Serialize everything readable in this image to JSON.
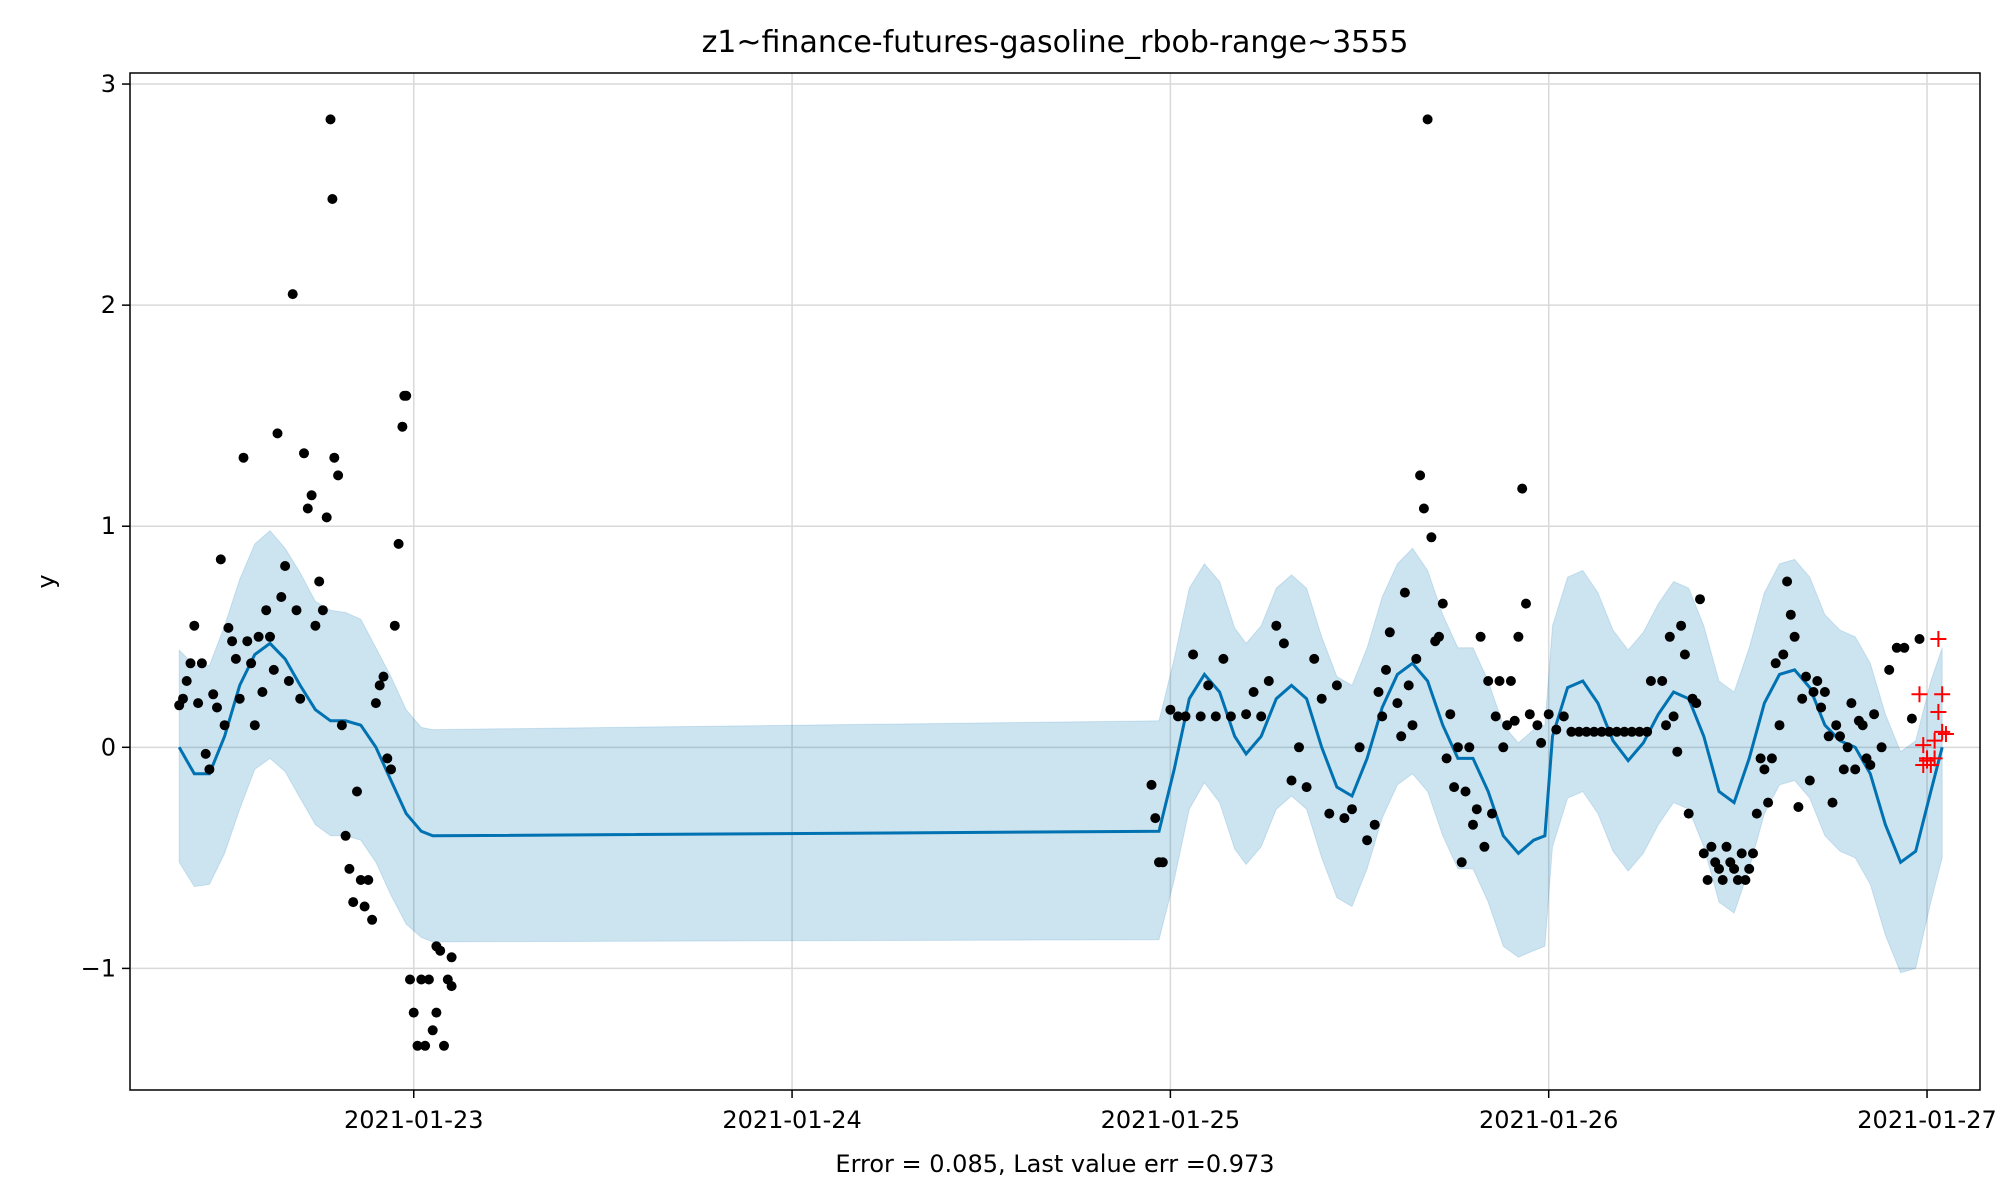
{
  "chart_data": {
    "type": "scatter",
    "title": "z1~finance-futures-gasoline_rbob-range~3555",
    "xlabel": "Error = 0.085, Last value err =0.973",
    "ylabel": "y",
    "x_unit": "days",
    "x_start_date": "2021-01-22",
    "xlim": [
      0.25,
      5.14
    ],
    "ylim": [
      -1.55,
      3.05
    ],
    "grid": true,
    "x_ticks": [
      {
        "x": 1.0,
        "label": "2021-01-23"
      },
      {
        "x": 2.0,
        "label": "2021-01-24"
      },
      {
        "x": 3.0,
        "label": "2021-01-25"
      },
      {
        "x": 4.0,
        "label": "2021-01-26"
      },
      {
        "x": 5.0,
        "label": "2021-01-27"
      }
    ],
    "y_ticks": [
      {
        "y": 3,
        "label": "3"
      },
      {
        "y": 2,
        "label": "2"
      },
      {
        "y": 1,
        "label": "1"
      },
      {
        "y": 0,
        "label": "0"
      },
      {
        "y": -1,
        "label": "−1"
      }
    ],
    "colors": {
      "forecast_line": "#0072B2",
      "interval_fill": "#0072B2",
      "observed": "#000000",
      "future": "#ff0000",
      "grid": "#d9d9d9"
    },
    "forecast": [
      [
        0.38,
        0.0
      ],
      [
        0.42,
        -0.12
      ],
      [
        0.46,
        -0.12
      ],
      [
        0.5,
        0.05
      ],
      [
        0.54,
        0.28
      ],
      [
        0.58,
        0.42
      ],
      [
        0.62,
        0.47
      ],
      [
        0.66,
        0.4
      ],
      [
        0.7,
        0.28
      ],
      [
        0.74,
        0.17
      ],
      [
        0.78,
        0.12
      ],
      [
        0.82,
        0.12
      ],
      [
        0.86,
        0.1
      ],
      [
        0.9,
        0.0
      ],
      [
        0.94,
        -0.15
      ],
      [
        0.98,
        -0.3
      ],
      [
        1.02,
        -0.38
      ],
      [
        1.05,
        -0.4
      ],
      [
        2.97,
        -0.38
      ],
      [
        3.01,
        -0.1
      ],
      [
        3.05,
        0.22
      ],
      [
        3.09,
        0.33
      ],
      [
        3.13,
        0.25
      ],
      [
        3.17,
        0.05
      ],
      [
        3.2,
        -0.03
      ],
      [
        3.24,
        0.05
      ],
      [
        3.28,
        0.22
      ],
      [
        3.32,
        0.28
      ],
      [
        3.36,
        0.22
      ],
      [
        3.4,
        0.0
      ],
      [
        3.44,
        -0.18
      ],
      [
        3.48,
        -0.22
      ],
      [
        3.52,
        -0.05
      ],
      [
        3.56,
        0.18
      ],
      [
        3.6,
        0.33
      ],
      [
        3.64,
        0.38
      ],
      [
        3.68,
        0.3
      ],
      [
        3.72,
        0.1
      ],
      [
        3.76,
        -0.05
      ],
      [
        3.8,
        -0.05
      ],
      [
        3.84,
        -0.2
      ],
      [
        3.88,
        -0.4
      ],
      [
        3.92,
        -0.48
      ],
      [
        3.96,
        -0.42
      ],
      [
        3.99,
        -0.4
      ],
      [
        4.01,
        0.05
      ],
      [
        4.05,
        0.27
      ],
      [
        4.09,
        0.3
      ],
      [
        4.13,
        0.2
      ],
      [
        4.17,
        0.03
      ],
      [
        4.21,
        -0.06
      ],
      [
        4.25,
        0.02
      ],
      [
        4.29,
        0.15
      ],
      [
        4.33,
        0.25
      ],
      [
        4.37,
        0.22
      ],
      [
        4.41,
        0.05
      ],
      [
        4.45,
        -0.2
      ],
      [
        4.49,
        -0.25
      ],
      [
        4.53,
        -0.05
      ],
      [
        4.57,
        0.2
      ],
      [
        4.61,
        0.33
      ],
      [
        4.65,
        0.35
      ],
      [
        4.69,
        0.27
      ],
      [
        4.73,
        0.1
      ],
      [
        4.77,
        0.03
      ],
      [
        4.81,
        0.0
      ],
      [
        4.85,
        -0.12
      ],
      [
        4.89,
        -0.35
      ],
      [
        4.93,
        -0.52
      ],
      [
        4.97,
        -0.47
      ],
      [
        5.01,
        -0.2
      ],
      [
        5.04,
        0.0
      ]
    ],
    "interval": [
      [
        0.38,
        -0.52,
        0.44
      ],
      [
        0.42,
        -0.63,
        0.37
      ],
      [
        0.46,
        -0.62,
        0.37
      ],
      [
        0.5,
        -0.48,
        0.55
      ],
      [
        0.54,
        -0.28,
        0.76
      ],
      [
        0.58,
        -0.1,
        0.92
      ],
      [
        0.62,
        -0.05,
        0.98
      ],
      [
        0.66,
        -0.11,
        0.9
      ],
      [
        0.7,
        -0.23,
        0.79
      ],
      [
        0.74,
        -0.35,
        0.66
      ],
      [
        0.78,
        -0.4,
        0.62
      ],
      [
        0.82,
        -0.4,
        0.61
      ],
      [
        0.86,
        -0.42,
        0.58
      ],
      [
        0.9,
        -0.52,
        0.45
      ],
      [
        0.94,
        -0.67,
        0.32
      ],
      [
        0.98,
        -0.8,
        0.17
      ],
      [
        1.02,
        -0.86,
        0.09
      ],
      [
        1.05,
        -0.88,
        0.08
      ],
      [
        2.97,
        -0.87,
        0.12
      ],
      [
        3.01,
        -0.6,
        0.4
      ],
      [
        3.05,
        -0.28,
        0.72
      ],
      [
        3.09,
        -0.16,
        0.83
      ],
      [
        3.13,
        -0.25,
        0.75
      ],
      [
        3.17,
        -0.46,
        0.54
      ],
      [
        3.2,
        -0.53,
        0.47
      ],
      [
        3.24,
        -0.45,
        0.55
      ],
      [
        3.28,
        -0.28,
        0.72
      ],
      [
        3.32,
        -0.22,
        0.78
      ],
      [
        3.36,
        -0.28,
        0.72
      ],
      [
        3.4,
        -0.5,
        0.5
      ],
      [
        3.44,
        -0.68,
        0.32
      ],
      [
        3.48,
        -0.72,
        0.28
      ],
      [
        3.52,
        -0.55,
        0.45
      ],
      [
        3.56,
        -0.32,
        0.68
      ],
      [
        3.6,
        -0.17,
        0.83
      ],
      [
        3.64,
        -0.12,
        0.9
      ],
      [
        3.68,
        -0.2,
        0.8
      ],
      [
        3.72,
        -0.4,
        0.6
      ],
      [
        3.76,
        -0.55,
        0.45
      ],
      [
        3.8,
        -0.55,
        0.45
      ],
      [
        3.84,
        -0.7,
        0.3
      ],
      [
        3.88,
        -0.9,
        0.1
      ],
      [
        3.92,
        -0.95,
        0.02
      ],
      [
        3.96,
        -0.92,
        0.08
      ],
      [
        3.99,
        -0.9,
        0.1
      ],
      [
        4.01,
        -0.45,
        0.55
      ],
      [
        4.05,
        -0.23,
        0.77
      ],
      [
        4.09,
        -0.2,
        0.8
      ],
      [
        4.13,
        -0.3,
        0.7
      ],
      [
        4.17,
        -0.47,
        0.53
      ],
      [
        4.21,
        -0.56,
        0.44
      ],
      [
        4.25,
        -0.48,
        0.52
      ],
      [
        4.29,
        -0.35,
        0.65
      ],
      [
        4.33,
        -0.25,
        0.75
      ],
      [
        4.37,
        -0.28,
        0.72
      ],
      [
        4.41,
        -0.45,
        0.55
      ],
      [
        4.45,
        -0.7,
        0.3
      ],
      [
        4.49,
        -0.75,
        0.25
      ],
      [
        4.53,
        -0.55,
        0.45
      ],
      [
        4.57,
        -0.3,
        0.7
      ],
      [
        4.61,
        -0.17,
        0.83
      ],
      [
        4.65,
        -0.15,
        0.85
      ],
      [
        4.69,
        -0.23,
        0.77
      ],
      [
        4.73,
        -0.4,
        0.6
      ],
      [
        4.77,
        -0.47,
        0.53
      ],
      [
        4.81,
        -0.5,
        0.5
      ],
      [
        4.85,
        -0.62,
        0.38
      ],
      [
        4.89,
        -0.85,
        0.15
      ],
      [
        4.93,
        -1.02,
        -0.02
      ],
      [
        4.97,
        -1.0,
        0.03
      ],
      [
        5.01,
        -0.7,
        0.3
      ],
      [
        5.04,
        -0.5,
        0.45
      ]
    ],
    "observed": [
      [
        0.38,
        0.19
      ],
      [
        0.39,
        0.22
      ],
      [
        0.4,
        0.3
      ],
      [
        0.41,
        0.38
      ],
      [
        0.42,
        0.55
      ],
      [
        0.43,
        0.2
      ],
      [
        0.44,
        0.38
      ],
      [
        0.45,
        -0.03
      ],
      [
        0.46,
        -0.1
      ],
      [
        0.47,
        0.24
      ],
      [
        0.48,
        0.18
      ],
      [
        0.49,
        0.85
      ],
      [
        0.5,
        0.1
      ],
      [
        0.51,
        0.54
      ],
      [
        0.52,
        0.48
      ],
      [
        0.53,
        0.4
      ],
      [
        0.54,
        0.22
      ],
      [
        0.55,
        1.31
      ],
      [
        0.56,
        0.48
      ],
      [
        0.57,
        0.38
      ],
      [
        0.58,
        0.1
      ],
      [
        0.59,
        0.5
      ],
      [
        0.6,
        0.25
      ],
      [
        0.61,
        0.62
      ],
      [
        0.62,
        0.5
      ],
      [
        0.63,
        0.35
      ],
      [
        0.64,
        1.42
      ],
      [
        0.65,
        0.68
      ],
      [
        0.66,
        0.82
      ],
      [
        0.67,
        0.3
      ],
      [
        0.68,
        2.05
      ],
      [
        0.69,
        0.62
      ],
      [
        0.7,
        0.22
      ],
      [
        0.71,
        1.33
      ],
      [
        0.72,
        1.08
      ],
      [
        0.73,
        1.14
      ],
      [
        0.74,
        0.55
      ],
      [
        0.75,
        0.75
      ],
      [
        0.76,
        0.62
      ],
      [
        0.77,
        1.04
      ],
      [
        0.78,
        2.84
      ],
      [
        0.785,
        2.48
      ],
      [
        0.79,
        1.31
      ],
      [
        0.8,
        1.23
      ],
      [
        0.81,
        0.1
      ],
      [
        0.82,
        -0.4
      ],
      [
        0.83,
        -0.55
      ],
      [
        0.84,
        -0.7
      ],
      [
        0.85,
        -0.2
      ],
      [
        0.86,
        -0.6
      ],
      [
        0.87,
        -0.72
      ],
      [
        0.88,
        -0.6
      ],
      [
        0.89,
        -0.78
      ],
      [
        0.9,
        0.2
      ],
      [
        0.91,
        0.28
      ],
      [
        0.92,
        0.32
      ],
      [
        0.93,
        -0.05
      ],
      [
        0.94,
        -0.1
      ],
      [
        0.95,
        0.55
      ],
      [
        0.96,
        0.92
      ],
      [
        0.97,
        1.45
      ],
      [
        0.975,
        1.59
      ],
      [
        0.98,
        1.59
      ],
      [
        0.99,
        -1.05
      ],
      [
        1.0,
        -1.2
      ],
      [
        1.01,
        -1.35
      ],
      [
        1.02,
        -1.05
      ],
      [
        1.03,
        -1.35
      ],
      [
        1.04,
        -1.05
      ],
      [
        1.05,
        -1.28
      ],
      [
        1.06,
        -1.2
      ],
      [
        1.07,
        -0.92
      ],
      [
        1.08,
        -1.35
      ],
      [
        1.09,
        -1.05
      ],
      [
        1.1,
        -0.95
      ],
      [
        1.1,
        -1.08
      ],
      [
        1.06,
        -0.9
      ],
      [
        2.95,
        -0.17
      ],
      [
        2.96,
        -0.32
      ],
      [
        2.97,
        -0.52
      ],
      [
        2.98,
        -0.52
      ],
      [
        3.0,
        0.17
      ],
      [
        3.02,
        0.14
      ],
      [
        3.04,
        0.14
      ],
      [
        3.06,
        0.42
      ],
      [
        3.08,
        0.14
      ],
      [
        3.1,
        0.28
      ],
      [
        3.12,
        0.14
      ],
      [
        3.14,
        0.4
      ],
      [
        3.16,
        0.14
      ],
      [
        3.2,
        0.15
      ],
      [
        3.22,
        0.25
      ],
      [
        3.24,
        0.14
      ],
      [
        3.26,
        0.3
      ],
      [
        3.28,
        0.55
      ],
      [
        3.3,
        0.47
      ],
      [
        3.32,
        -0.15
      ],
      [
        3.34,
        0.0
      ],
      [
        3.36,
        -0.18
      ],
      [
        3.38,
        0.4
      ],
      [
        3.4,
        0.22
      ],
      [
        3.42,
        -0.3
      ],
      [
        3.44,
        0.28
      ],
      [
        3.46,
        -0.32
      ],
      [
        3.48,
        -0.28
      ],
      [
        3.5,
        0.0
      ],
      [
        3.52,
        -0.42
      ],
      [
        3.54,
        -0.35
      ],
      [
        3.56,
        0.14
      ],
      [
        3.58,
        0.52
      ],
      [
        3.6,
        0.2
      ],
      [
        3.62,
        0.7
      ],
      [
        3.64,
        0.1
      ],
      [
        3.66,
        1.23
      ],
      [
        3.67,
        1.08
      ],
      [
        3.68,
        2.84
      ],
      [
        3.69,
        0.95
      ],
      [
        3.7,
        0.48
      ],
      [
        3.72,
        0.65
      ],
      [
        3.74,
        0.15
      ],
      [
        3.76,
        0.0
      ],
      [
        3.77,
        -0.52
      ],
      [
        3.78,
        -0.2
      ],
      [
        3.8,
        -0.35
      ],
      [
        3.82,
        0.5
      ],
      [
        3.84,
        0.3
      ],
      [
        3.86,
        0.14
      ],
      [
        3.88,
        0.0
      ],
      [
        3.9,
        0.3
      ],
      [
        3.92,
        0.5
      ],
      [
        3.93,
        1.17
      ],
      [
        3.94,
        0.65
      ],
      [
        3.95,
        0.15
      ],
      [
        3.97,
        0.1
      ],
      [
        3.98,
        0.02
      ],
      [
        4.0,
        0.15
      ],
      [
        4.02,
        0.08
      ],
      [
        4.04,
        0.14
      ],
      [
        4.06,
        0.07
      ],
      [
        4.08,
        0.07
      ],
      [
        4.1,
        0.07
      ],
      [
        4.12,
        0.07
      ],
      [
        4.14,
        0.07
      ],
      [
        4.16,
        0.07
      ],
      [
        4.18,
        0.07
      ],
      [
        4.2,
        0.07
      ],
      [
        4.22,
        0.07
      ],
      [
        4.24,
        0.07
      ],
      [
        4.26,
        0.07
      ],
      [
        4.3,
        0.3
      ],
      [
        4.32,
        0.5
      ],
      [
        4.33,
        0.14
      ],
      [
        4.34,
        -0.02
      ],
      [
        4.35,
        0.55
      ],
      [
        4.36,
        0.42
      ],
      [
        4.38,
        0.22
      ],
      [
        4.4,
        0.67
      ],
      [
        4.41,
        -0.48
      ],
      [
        4.42,
        -0.6
      ],
      [
        4.43,
        -0.45
      ],
      [
        4.44,
        -0.52
      ],
      [
        4.45,
        -0.55
      ],
      [
        4.46,
        -0.6
      ],
      [
        4.47,
        -0.45
      ],
      [
        4.48,
        -0.52
      ],
      [
        4.49,
        -0.55
      ],
      [
        4.5,
        -0.6
      ],
      [
        4.51,
        -0.48
      ],
      [
        4.52,
        -0.6
      ],
      [
        4.53,
        -0.55
      ],
      [
        4.54,
        -0.48
      ],
      [
        4.55,
        -0.3
      ],
      [
        4.56,
        -0.05
      ],
      [
        4.57,
        -0.1
      ],
      [
        4.58,
        -0.25
      ],
      [
        4.6,
        0.38
      ],
      [
        4.62,
        0.42
      ],
      [
        4.63,
        0.75
      ],
      [
        4.64,
        0.6
      ],
      [
        4.65,
        0.5
      ],
      [
        4.66,
        -0.27
      ],
      [
        4.68,
        0.32
      ],
      [
        4.7,
        0.25
      ],
      [
        4.72,
        0.18
      ],
      [
        4.74,
        0.05
      ],
      [
        4.76,
        0.1
      ],
      [
        4.78,
        -0.1
      ],
      [
        4.8,
        0.2
      ],
      [
        4.82,
        0.12
      ],
      [
        4.84,
        -0.05
      ],
      [
        4.86,
        0.15
      ],
      [
        4.88,
        0.0
      ],
      [
        4.9,
        0.35
      ],
      [
        4.92,
        0.45
      ],
      [
        4.94,
        0.45
      ],
      [
        4.96,
        0.13
      ],
      [
        4.98,
        0.49
      ],
      [
        3.55,
        0.25
      ],
      [
        3.57,
        0.35
      ],
      [
        3.61,
        0.05
      ],
      [
        3.63,
        0.28
      ],
      [
        3.65,
        0.4
      ],
      [
        3.71,
        0.5
      ],
      [
        3.73,
        -0.05
      ],
      [
        3.75,
        -0.18
      ],
      [
        3.79,
        0.0
      ],
      [
        3.81,
        -0.28
      ],
      [
        3.83,
        -0.45
      ],
      [
        3.85,
        -0.3
      ],
      [
        3.87,
        0.3
      ],
      [
        3.89,
        0.1
      ],
      [
        3.91,
        0.12
      ],
      [
        4.27,
        0.3
      ],
      [
        4.31,
        0.1
      ],
      [
        4.37,
        -0.3
      ],
      [
        4.39,
        0.2
      ],
      [
        4.59,
        -0.05
      ],
      [
        4.61,
        0.1
      ],
      [
        4.67,
        0.22
      ],
      [
        4.69,
        -0.15
      ],
      [
        4.71,
        0.3
      ],
      [
        4.73,
        0.25
      ],
      [
        4.75,
        -0.25
      ],
      [
        4.77,
        0.05
      ],
      [
        4.79,
        0.0
      ],
      [
        4.81,
        -0.1
      ],
      [
        4.83,
        0.1
      ],
      [
        4.85,
        -0.08
      ]
    ],
    "future": [
      [
        4.98,
        0.24
      ],
      [
        4.99,
        0.01
      ],
      [
        5.0,
        -0.06
      ],
      [
        5.01,
        -0.08
      ],
      [
        5.02,
        0.03
      ],
      [
        5.02,
        -0.05
      ],
      [
        5.03,
        0.49
      ],
      [
        5.03,
        0.16
      ],
      [
        5.04,
        0.24
      ],
      [
        5.04,
        0.07
      ],
      [
        5.05,
        0.06
      ],
      [
        4.99,
        -0.08
      ],
      [
        5.0,
        -0.05
      ]
    ]
  }
}
